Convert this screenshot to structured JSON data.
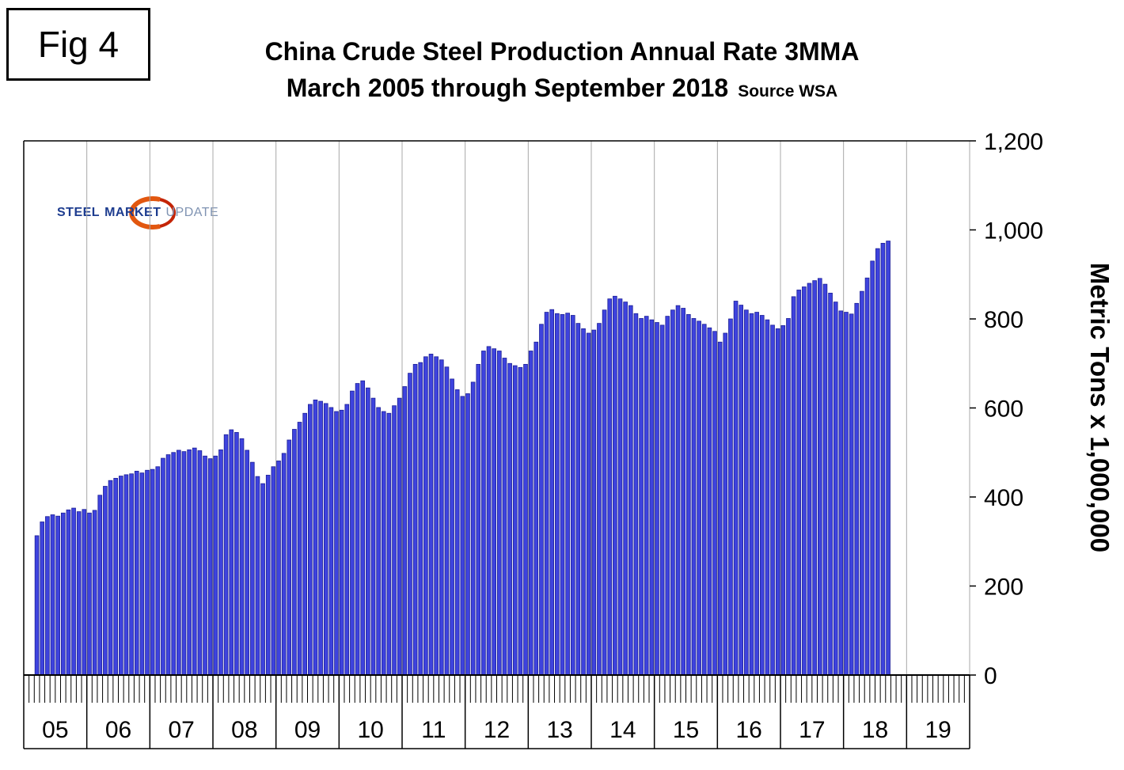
{
  "fig_label": "Fig 4",
  "title": {
    "line1": "China Crude Steel Production Annual Rate 3MMA",
    "line2": "March 2005 through September 2018",
    "source": "Source WSA"
  },
  "logo": {
    "word1": "STEEL",
    "word2": "MARKET",
    "word3": "UPDATE"
  },
  "chart_data": {
    "type": "bar",
    "title": "China Crude Steel Production Annual Rate 3MMA",
    "subtitle": "March 2005 through September 2018",
    "source": "Source WSA",
    "ylabel": "Metric Tons x 1,000,000",
    "ylim": [
      0,
      1200
    ],
    "ytick_step": 200,
    "ytick_labels": [
      "0",
      "200",
      "400",
      "600",
      "800",
      "1,000",
      "1,200"
    ],
    "base_year": 2005,
    "x_year_labels": [
      "05",
      "06",
      "07",
      "08",
      "09",
      "10",
      "11",
      "12",
      "13",
      "14",
      "15",
      "16",
      "17",
      "18",
      "19"
    ],
    "start": {
      "year": 2005,
      "month": 3
    },
    "end": {
      "year": 2018,
      "month": 9
    },
    "frequency": "monthly",
    "legend": "none",
    "gridlines": "vertical-year-boundaries",
    "bar_color": "#3e43de",
    "bar_border": "#1c1f96",
    "gridline_color": "#a8a8a8",
    "values": [
      313,
      344,
      356,
      360,
      357,
      364,
      371,
      375,
      367,
      372,
      364,
      370,
      404,
      424,
      437,
      442,
      447,
      450,
      452,
      458,
      454,
      460,
      462,
      468,
      487,
      495,
      500,
      505,
      502,
      506,
      510,
      504,
      492,
      486,
      492,
      506,
      540,
      551,
      545,
      531,
      505,
      478,
      446,
      430,
      449,
      468,
      481,
      498,
      528,
      552,
      568,
      588,
      608,
      618,
      615,
      610,
      601,
      592,
      595,
      608,
      638,
      655,
      661,
      645,
      622,
      601,
      592,
      588,
      605,
      622,
      648,
      678,
      698,
      702,
      715,
      721,
      715,
      708,
      692,
      665,
      641,
      626,
      632,
      658,
      698,
      728,
      738,
      733,
      728,
      712,
      700,
      695,
      691,
      698,
      728,
      748,
      788,
      815,
      821,
      812,
      810,
      813,
      808,
      790,
      778,
      768,
      775,
      790,
      820,
      845,
      851,
      845,
      838,
      830,
      812,
      801,
      806,
      798,
      792,
      786,
      806,
      820,
      830,
      824,
      810,
      801,
      795,
      788,
      780,
      772,
      748,
      768,
      800,
      840,
      831,
      820,
      812,
      815,
      808,
      798,
      786,
      778,
      785,
      801,
      850,
      865,
      872,
      880,
      886,
      891,
      878,
      858,
      838,
      818,
      815,
      811,
      835,
      862,
      892,
      930,
      958,
      970,
      975
    ]
  }
}
